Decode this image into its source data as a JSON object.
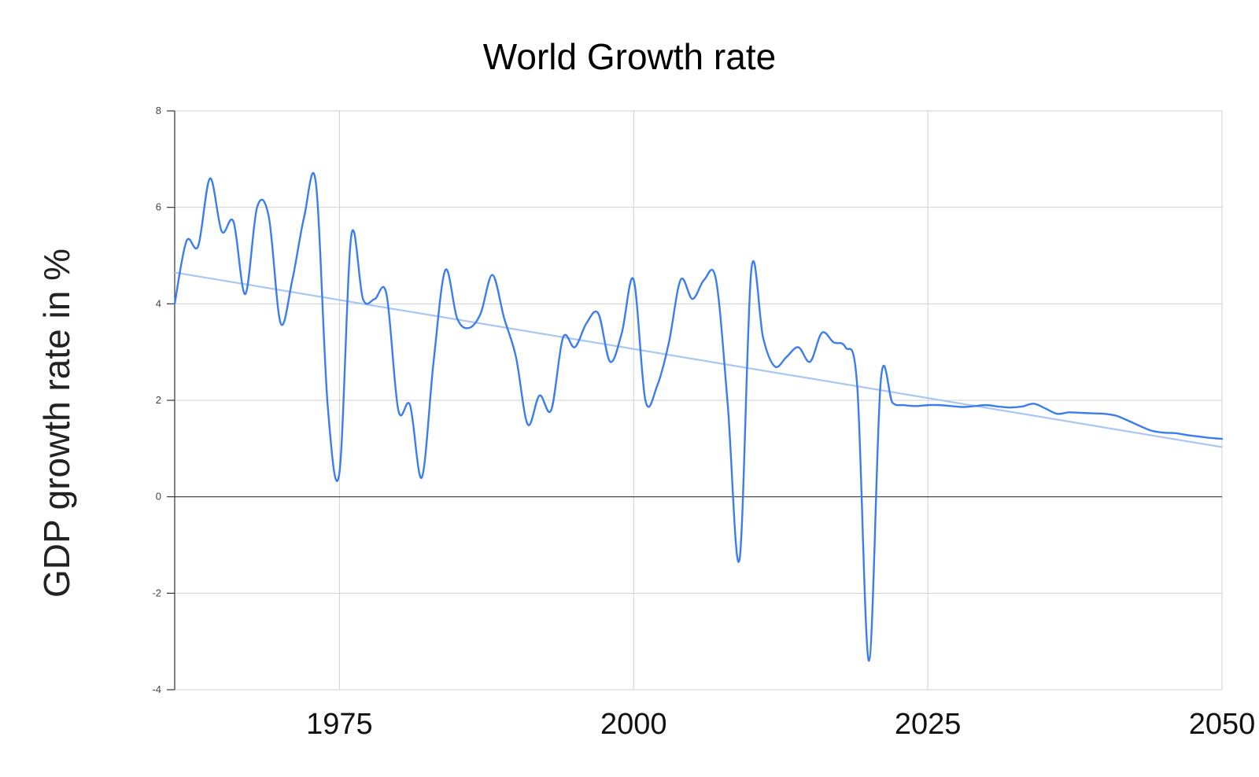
{
  "chart_data": {
    "type": "line",
    "title": "World Growth rate",
    "xlabel": "",
    "ylabel": "GDP growth rate in %",
    "xlim": [
      1961,
      2050
    ],
    "ylim": [
      -4,
      8
    ],
    "x_ticks": [
      1975,
      2000,
      2025,
      2050
    ],
    "x_tick_labels": [
      "1975",
      "2000",
      "2025",
      "2050"
    ],
    "y_ticks": [
      -4,
      -2,
      0,
      2,
      4,
      6,
      8
    ],
    "y_tick_labels": [
      "-4",
      "-2",
      "0",
      "2",
      "4",
      "6",
      "8"
    ],
    "grid": true,
    "legend": null,
    "colors": {
      "series": "#3b7ded",
      "trend": "#a9c6f5",
      "grid": "#d0d0d0",
      "axis": "#333333"
    },
    "series": [
      {
        "name": "GDP growth rate",
        "kind": "line",
        "x": [
          1961,
          1962,
          1963,
          1964,
          1965,
          1966,
          1967,
          1968,
          1969,
          1970,
          1971,
          1972,
          1973,
          1974,
          1975,
          1976,
          1977,
          1978,
          1979,
          1980,
          1981,
          1982,
          1983,
          1984,
          1985,
          1986,
          1987,
          1988,
          1989,
          1990,
          1991,
          1992,
          1993,
          1994,
          1995,
          1996,
          1997,
          1998,
          1999,
          2000,
          2001,
          2002,
          2003,
          2004,
          2005,
          2006,
          2007,
          2008,
          2009,
          2010,
          2011,
          2012,
          2013,
          2014,
          2015,
          2016,
          2017,
          2018,
          2019,
          2020,
          2021,
          2022,
          2023,
          2024,
          2025,
          2026,
          2027,
          2028,
          2029,
          2030,
          2031,
          2032,
          2033,
          2034,
          2035,
          2036,
          2037,
          2038,
          2039,
          2040,
          2041,
          2042,
          2043,
          2044,
          2045,
          2046,
          2047,
          2048,
          2049,
          2050
        ],
        "values": [
          4.0,
          5.3,
          5.2,
          6.6,
          5.5,
          5.7,
          4.2,
          6.0,
          5.8,
          3.6,
          4.5,
          5.8,
          6.5,
          1.9,
          0.5,
          5.4,
          4.1,
          4.1,
          4.2,
          1.8,
          1.9,
          0.4,
          2.8,
          4.7,
          3.7,
          3.5,
          3.8,
          4.6,
          3.7,
          2.9,
          1.5,
          2.1,
          1.8,
          3.3,
          3.1,
          3.6,
          3.8,
          2.8,
          3.4,
          4.5,
          2.0,
          2.3,
          3.2,
          4.5,
          4.1,
          4.5,
          4.5,
          1.9,
          -1.3,
          4.7,
          3.3,
          2.7,
          2.9,
          3.1,
          2.8,
          3.4,
          3.2,
          3.1,
          2.3,
          -3.4,
          2.4,
          1.95,
          1.9,
          1.88,
          1.9,
          1.9,
          1.88,
          1.86,
          1.88,
          1.9,
          1.87,
          1.85,
          1.87,
          1.93,
          1.83,
          1.72,
          1.75,
          1.74,
          1.73,
          1.72,
          1.68,
          1.58,
          1.47,
          1.37,
          1.33,
          1.32,
          1.28,
          1.25,
          1.22,
          1.2
        ]
      },
      {
        "name": "Trendline",
        "kind": "trend",
        "x": [
          1961,
          2050
        ],
        "values": [
          4.65,
          1.03
        ]
      }
    ]
  }
}
